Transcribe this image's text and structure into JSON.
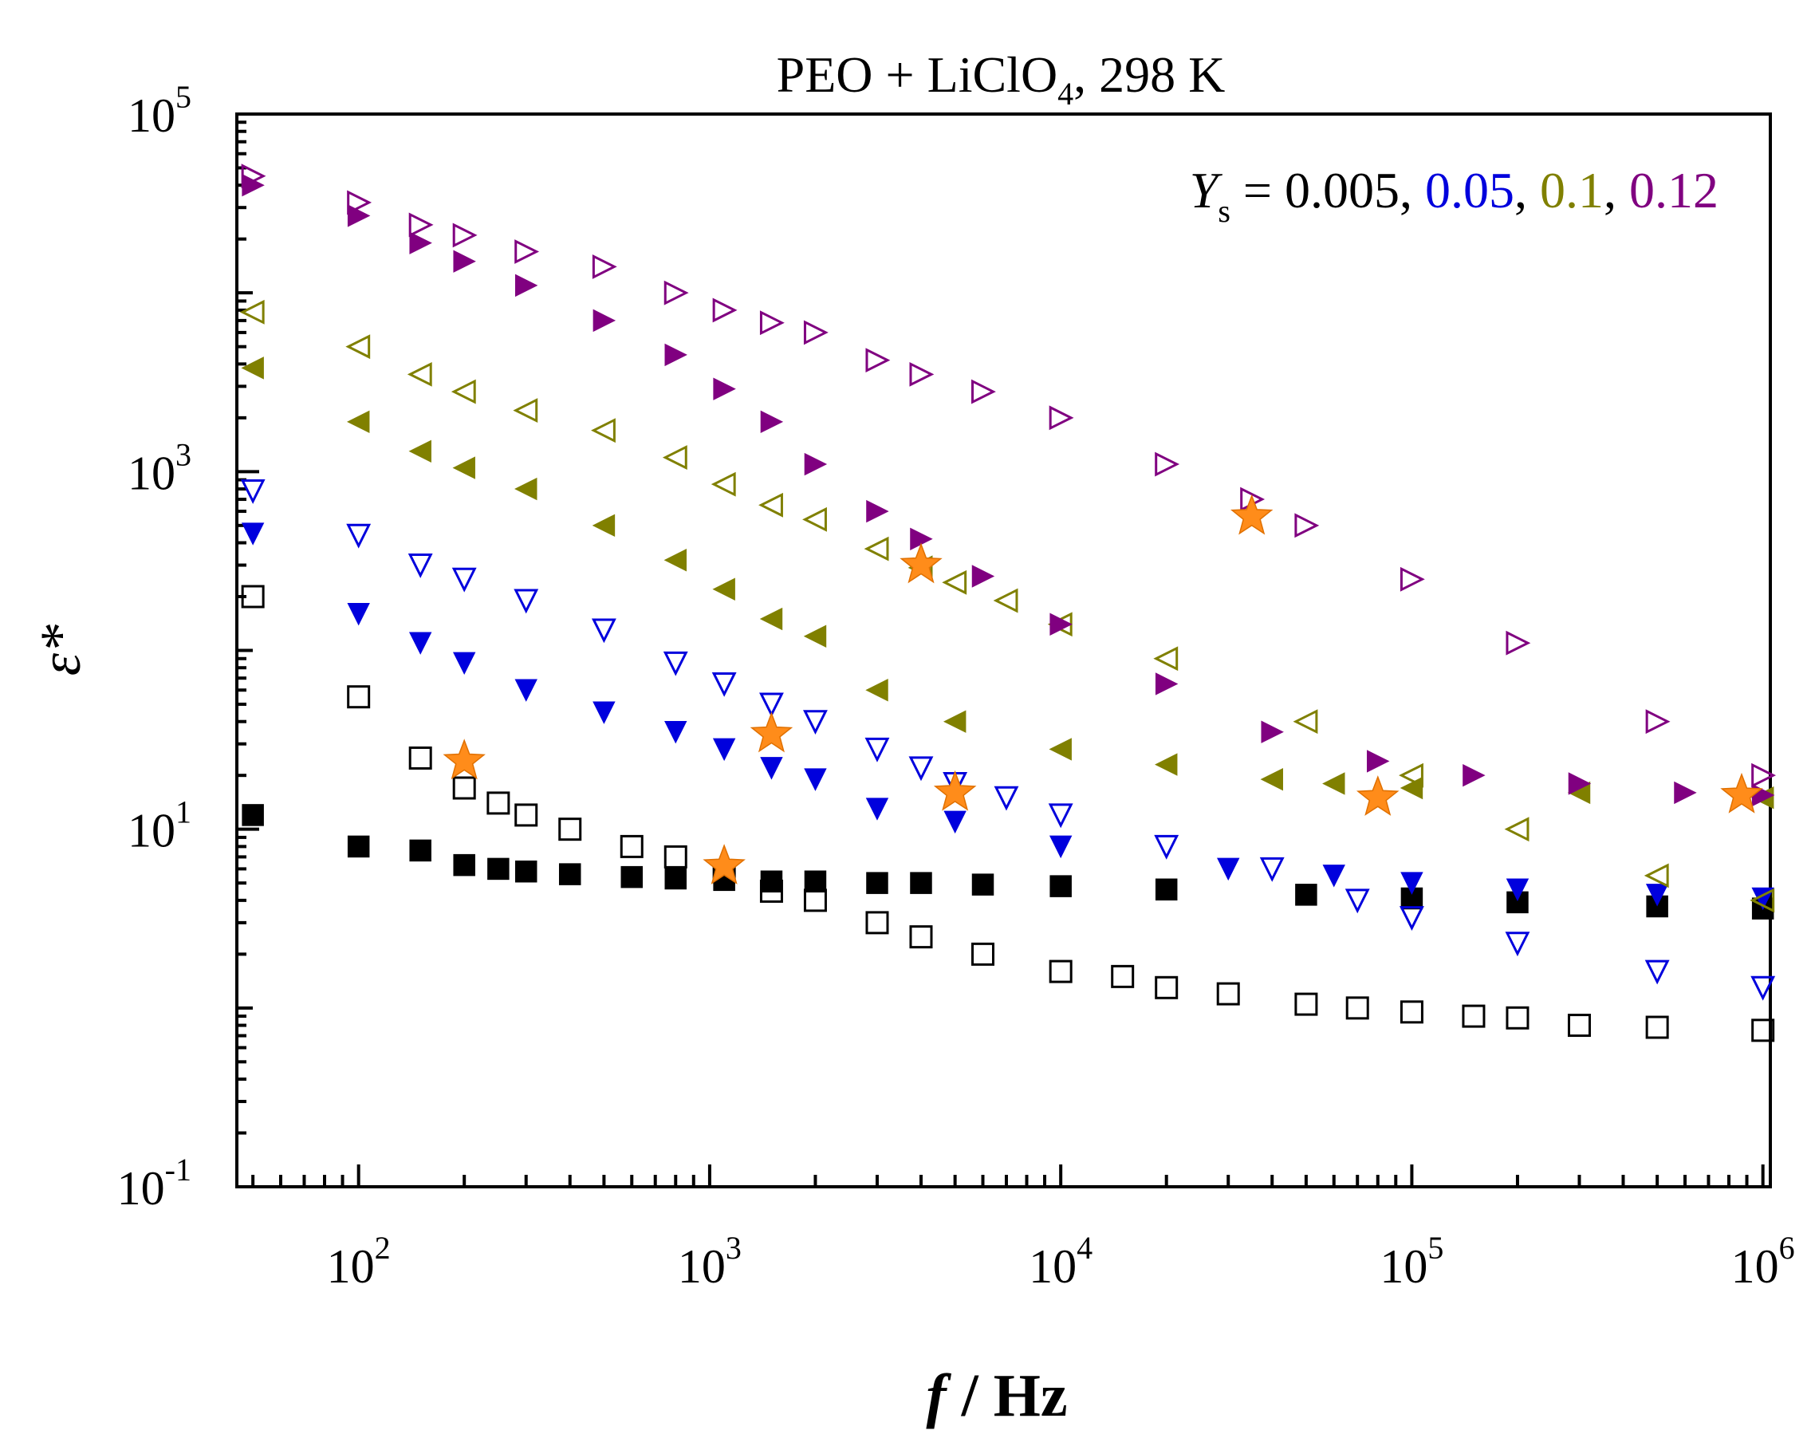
{
  "chart_data": {
    "type": "scatter",
    "title": "PEO + LiClO",
    "title_sub": "4",
    "title_tail": ", 298 K",
    "xlabel": "f",
    "xlabel_unit": " / Hz",
    "ylabel": "ε*",
    "x_scale": "log",
    "y_scale": "log",
    "xlim": [
      45,
      1050000
    ],
    "ylim": [
      0.1,
      100000
    ],
    "x_ticks": [
      {
        "base": "10",
        "exp": "2",
        "value": 100
      },
      {
        "base": "10",
        "exp": "3",
        "value": 1000
      },
      {
        "base": "10",
        "exp": "4",
        "value": 10000
      },
      {
        "base": "10",
        "exp": "5",
        "value": 100000
      },
      {
        "base": "10",
        "exp": "6",
        "value": 1000000
      }
    ],
    "y_ticks": [
      {
        "base": "10",
        "exp": "-1",
        "value": 0.1
      },
      {
        "base": "10",
        "exp": "1",
        "value": 10
      },
      {
        "base": "10",
        "exp": "3",
        "value": 1000
      },
      {
        "base": "10",
        "exp": "5",
        "value": 100000
      }
    ],
    "legend": {
      "symbol": "Y",
      "symbol_sub": "s",
      "equals": " = ",
      "entries": [
        {
          "label": "0.005",
          "color": "#000000"
        },
        {
          "label": "0.05",
          "color": "#0000dd"
        },
        {
          "label": "0.1",
          "color": "#808000"
        },
        {
          "label": "0.12",
          "color": "#800080"
        }
      ],
      "separator": ", ",
      "position": "top-right"
    },
    "series": [
      {
        "name": "Ys=0.005 filled",
        "color": "#000000",
        "marker": "square",
        "filled": true,
        "points": [
          [
            50,
            12
          ],
          [
            100,
            8
          ],
          [
            150,
            7.6
          ],
          [
            200,
            6.3
          ],
          [
            250,
            6
          ],
          [
            300,
            5.8
          ],
          [
            400,
            5.6
          ],
          [
            600,
            5.4
          ],
          [
            800,
            5.3
          ],
          [
            1100,
            5.2
          ],
          [
            1500,
            5.1
          ],
          [
            2000,
            5.1
          ],
          [
            3000,
            5.0
          ],
          [
            4000,
            5.0
          ],
          [
            6000,
            4.9
          ],
          [
            10000,
            4.8
          ],
          [
            20000,
            4.6
          ],
          [
            50000,
            4.3
          ],
          [
            100000,
            4.1
          ],
          [
            200000,
            3.9
          ],
          [
            500000,
            3.7
          ],
          [
            1000000,
            3.6
          ]
        ]
      },
      {
        "name": "Ys=0.005 open",
        "color": "#000000",
        "marker": "square",
        "filled": false,
        "points": [
          [
            50,
            200
          ],
          [
            100,
            55
          ],
          [
            150,
            25
          ],
          [
            200,
            17
          ],
          [
            250,
            14
          ],
          [
            300,
            12
          ],
          [
            400,
            10
          ],
          [
            600,
            8
          ],
          [
            800,
            7
          ],
          [
            1100,
            5.8
          ],
          [
            1500,
            4.5
          ],
          [
            2000,
            4
          ],
          [
            3000,
            3
          ],
          [
            4000,
            2.5
          ],
          [
            6000,
            2
          ],
          [
            10000,
            1.6
          ],
          [
            15000,
            1.5
          ],
          [
            20000,
            1.3
          ],
          [
            30000,
            1.2
          ],
          [
            50000,
            1.05
          ],
          [
            70000,
            1
          ],
          [
            100000,
            0.95
          ],
          [
            150000,
            0.9
          ],
          [
            200000,
            0.88
          ],
          [
            300000,
            0.8
          ],
          [
            500000,
            0.78
          ],
          [
            1000000,
            0.75
          ]
        ]
      },
      {
        "name": "Ys=0.05 filled",
        "color": "#0000dd",
        "marker": "triangle-down",
        "filled": true,
        "points": [
          [
            50,
            450
          ],
          [
            100,
            160
          ],
          [
            150,
            110
          ],
          [
            200,
            85
          ],
          [
            300,
            60
          ],
          [
            500,
            45
          ],
          [
            800,
            35
          ],
          [
            1100,
            28
          ],
          [
            1500,
            22
          ],
          [
            2000,
            19
          ],
          [
            3000,
            13
          ],
          [
            5000,
            11
          ],
          [
            10000,
            8
          ],
          [
            30000,
            6
          ],
          [
            60000,
            5.5
          ],
          [
            100000,
            5
          ],
          [
            200000,
            4.6
          ],
          [
            500000,
            4.3
          ],
          [
            1000000,
            4.1
          ]
        ]
      },
      {
        "name": "Ys=0.05 open",
        "color": "#0000dd",
        "marker": "triangle-down",
        "filled": false,
        "points": [
          [
            50,
            780
          ],
          [
            100,
            440
          ],
          [
            150,
            300
          ],
          [
            200,
            250
          ],
          [
            300,
            190
          ],
          [
            500,
            130
          ],
          [
            800,
            85
          ],
          [
            1100,
            65
          ],
          [
            1500,
            50
          ],
          [
            2000,
            40
          ],
          [
            3000,
            28
          ],
          [
            4000,
            22
          ],
          [
            5000,
            18
          ],
          [
            7000,
            15
          ],
          [
            10000,
            12
          ],
          [
            20000,
            8
          ],
          [
            40000,
            6
          ],
          [
            70000,
            4
          ],
          [
            100000,
            3.2
          ],
          [
            200000,
            2.3
          ],
          [
            500000,
            1.6
          ],
          [
            1000000,
            1.3
          ]
        ]
      },
      {
        "name": "Ys=0.1 filled",
        "color": "#808000",
        "marker": "triangle-left",
        "filled": true,
        "points": [
          [
            50,
            3800
          ],
          [
            100,
            1900
          ],
          [
            150,
            1300
          ],
          [
            200,
            1050
          ],
          [
            300,
            800
          ],
          [
            500,
            500
          ],
          [
            800,
            320
          ],
          [
            1100,
            220
          ],
          [
            1500,
            150
          ],
          [
            2000,
            120
          ],
          [
            3000,
            60
          ],
          [
            5000,
            40
          ],
          [
            10000,
            28
          ],
          [
            20000,
            23
          ],
          [
            40000,
            19
          ],
          [
            60000,
            18
          ],
          [
            100000,
            17
          ],
          [
            300000,
            16
          ],
          [
            1000000,
            15
          ]
        ]
      },
      {
        "name": "Ys=0.1 open",
        "color": "#808000",
        "marker": "triangle-left",
        "filled": false,
        "points": [
          [
            50,
            7800
          ],
          [
            100,
            5000
          ],
          [
            150,
            3500
          ],
          [
            200,
            2800
          ],
          [
            300,
            2200
          ],
          [
            500,
            1700
          ],
          [
            800,
            1200
          ],
          [
            1100,
            850
          ],
          [
            1500,
            650
          ],
          [
            2000,
            540
          ],
          [
            3000,
            370
          ],
          [
            4000,
            290
          ],
          [
            5000,
            240
          ],
          [
            7000,
            190
          ],
          [
            10000,
            140
          ],
          [
            20000,
            90
          ],
          [
            50000,
            40
          ],
          [
            100000,
            20
          ],
          [
            200000,
            10
          ],
          [
            500000,
            5.5
          ],
          [
            1000000,
            4
          ]
        ]
      },
      {
        "name": "Ys=0.12 filled",
        "color": "#800080",
        "marker": "triangle-right",
        "filled": true,
        "points": [
          [
            50,
            40000
          ],
          [
            100,
            27000
          ],
          [
            150,
            19000
          ],
          [
            200,
            15000
          ],
          [
            300,
            11000
          ],
          [
            500,
            7000
          ],
          [
            800,
            4500
          ],
          [
            1100,
            2900
          ],
          [
            1500,
            1900
          ],
          [
            2000,
            1100
          ],
          [
            3000,
            600
          ],
          [
            4000,
            420
          ],
          [
            6000,
            260
          ],
          [
            10000,
            140
          ],
          [
            20000,
            65
          ],
          [
            40000,
            35
          ],
          [
            80000,
            24
          ],
          [
            150000,
            20
          ],
          [
            300000,
            18
          ],
          [
            600000,
            16
          ],
          [
            1000000,
            15.5
          ]
        ]
      },
      {
        "name": "Ys=0.12 open",
        "color": "#800080",
        "marker": "triangle-right",
        "filled": false,
        "points": [
          [
            50,
            45000
          ],
          [
            100,
            32000
          ],
          [
            150,
            24000
          ],
          [
            200,
            21000
          ],
          [
            300,
            17000
          ],
          [
            500,
            14000
          ],
          [
            800,
            10000
          ],
          [
            1100,
            8000
          ],
          [
            1500,
            6800
          ],
          [
            2000,
            6000
          ],
          [
            3000,
            4200
          ],
          [
            4000,
            3500
          ],
          [
            6000,
            2800
          ],
          [
            10000,
            2000
          ],
          [
            20000,
            1100
          ],
          [
            35000,
            700
          ],
          [
            50000,
            500
          ],
          [
            100000,
            250
          ],
          [
            200000,
            110
          ],
          [
            500000,
            40
          ],
          [
            1000000,
            20
          ]
        ]
      }
    ],
    "highlights": {
      "color": "#ff8c1a",
      "marker": "star",
      "points": [
        [
          200,
          24
        ],
        [
          1100,
          6.2
        ],
        [
          1500,
          34
        ],
        [
          4000,
          300
        ],
        [
          5000,
          16
        ],
        [
          35000,
          560
        ],
        [
          80000,
          15
        ],
        [
          870000,
          15.5
        ]
      ]
    }
  }
}
